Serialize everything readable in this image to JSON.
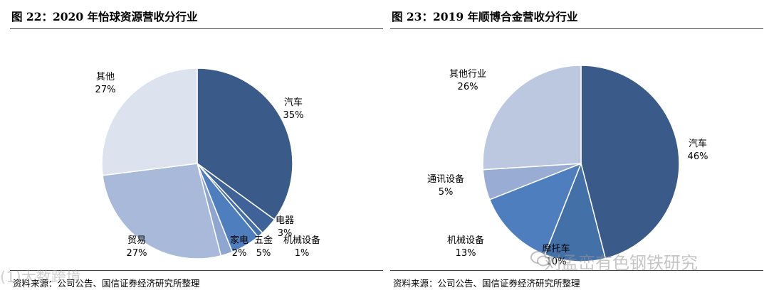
{
  "panels": [
    {
      "title": "图 22：2020 年怡球资源营收分行业",
      "source": "资料来源：公司公告、国信证券经济研究所整理"
    },
    {
      "title": "图 23：2019 年顺博合金营收分行业",
      "source": "资料来源：公司公告、国信证券经济研究所整理"
    }
  ],
  "watermarks": {
    "left": "(1)大数跨境",
    "right": "刘孟峦有色钢铁研究"
  },
  "chart_data": [
    {
      "type": "pie",
      "title": "2020 年怡球资源营收分行业",
      "slices": [
        {
          "label": "汽车",
          "value": 35,
          "display": "35%",
          "color": "#3A5A8A"
        },
        {
          "label": "电器",
          "value": 3,
          "display": "3%",
          "color": "#3F6399"
        },
        {
          "label": "机械设备",
          "value": 1,
          "display": "1%",
          "color": "#4470A8"
        },
        {
          "label": "五金",
          "value": 5,
          "display": "5%",
          "color": "#4F7EBE"
        },
        {
          "label": "家电",
          "value": 2,
          "display": "2%",
          "color": "#8EA6D0"
        },
        {
          "label": "贸易",
          "value": 27,
          "display": "27%",
          "color": "#A8B9D9"
        },
        {
          "label": "其他",
          "value": 27,
          "display": "27%",
          "color": "#DCE2EE"
        }
      ]
    },
    {
      "type": "pie",
      "title": "2019 年顺博合金营收分行业",
      "slices": [
        {
          "label": "汽车",
          "value": 46,
          "display": "46%",
          "color": "#3A5A8A"
        },
        {
          "label": "摩托车",
          "value": 10,
          "display": "10%",
          "color": "#4470A8"
        },
        {
          "label": "机械设备",
          "value": 13,
          "display": "13%",
          "color": "#4F7EBE"
        },
        {
          "label": "通讯设备",
          "value": 5,
          "display": "5%",
          "color": "#98ACD4"
        },
        {
          "label": "其他行业",
          "value": 26,
          "display": "26%",
          "color": "#BCC8E0"
        }
      ]
    }
  ]
}
